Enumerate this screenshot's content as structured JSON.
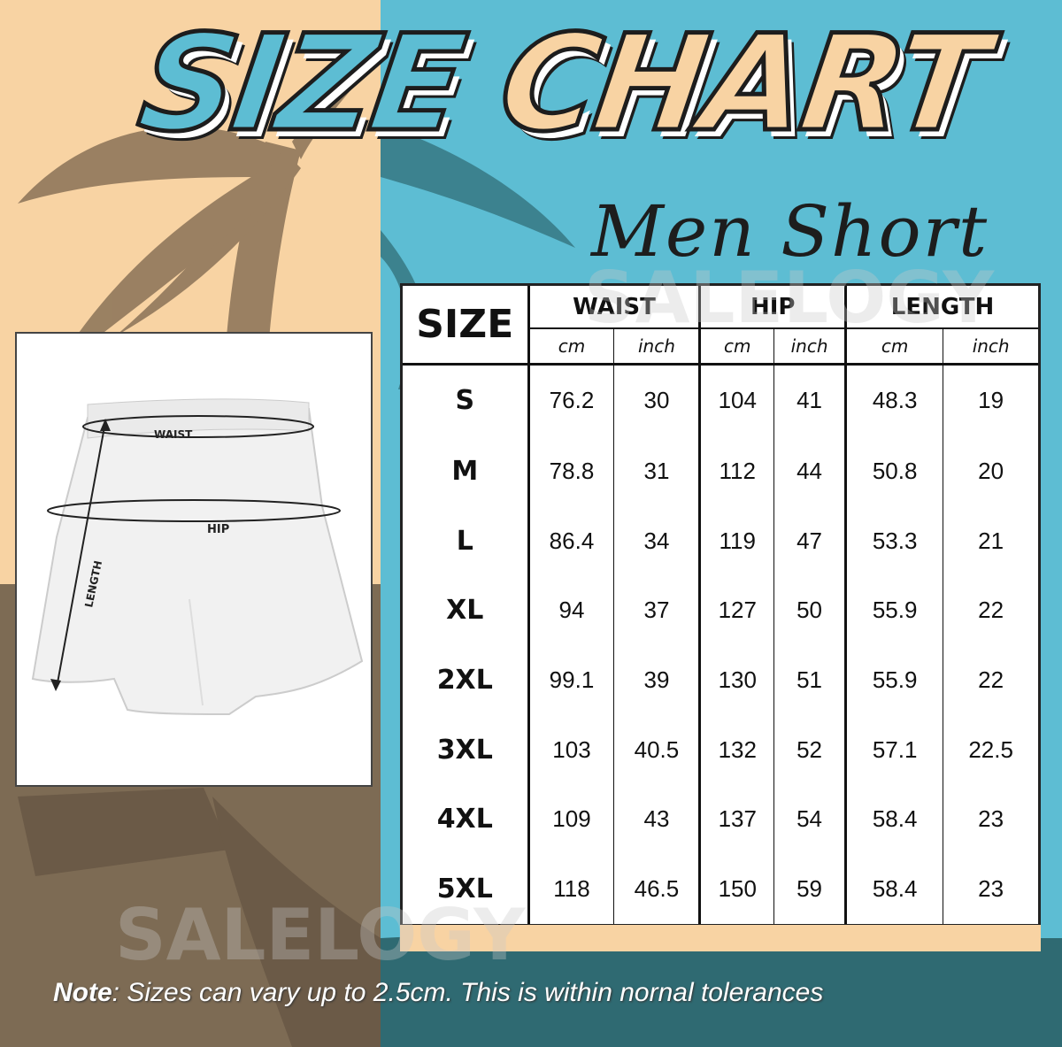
{
  "header": {
    "title_word1": "SIZE",
    "title_word2": "CHART",
    "subtitle": "Men Short"
  },
  "watermark": "SALELOGY",
  "diagram": {
    "labels": {
      "waist": "WAIST",
      "hip": "HIP",
      "length": "LENGTH"
    }
  },
  "table": {
    "size_header": "SIZE",
    "groups": [
      "WAIST",
      "HIP",
      "LENGTH"
    ],
    "units": [
      "cm",
      "inch",
      "cm",
      "inch",
      "cm",
      "inch"
    ],
    "rows": [
      {
        "size": "S",
        "values": [
          "76.2",
          "30",
          "104",
          "41",
          "48.3",
          "19"
        ]
      },
      {
        "size": "M",
        "values": [
          "78.8",
          "31",
          "112",
          "44",
          "50.8",
          "20"
        ]
      },
      {
        "size": "L",
        "values": [
          "86.4",
          "34",
          "119",
          "47",
          "53.3",
          "21"
        ]
      },
      {
        "size": "XL",
        "values": [
          "94",
          "37",
          "127",
          "50",
          "55.9",
          "22"
        ]
      },
      {
        "size": "2XL",
        "values": [
          "99.1",
          "39",
          "130",
          "51",
          "55.9",
          "22"
        ]
      },
      {
        "size": "3XL",
        "values": [
          "103",
          "40.5",
          "132",
          "52",
          "57.1",
          "22.5"
        ]
      },
      {
        "size": "4XL",
        "values": [
          "109",
          "43",
          "137",
          "54",
          "58.4",
          "23"
        ]
      },
      {
        "size": "5XL",
        "values": [
          "118",
          "46.5",
          "150",
          "59",
          "58.4",
          "23"
        ]
      }
    ]
  },
  "note": {
    "label": "Note",
    "text": ": Sizes can vary up to 2.5cm. This is within nornal tolerances"
  },
  "colors": {
    "peach": "#f8d3a3",
    "brown": "#7d6b54",
    "teal": "#5dbdd3",
    "dark_teal": "#2f6a72"
  }
}
